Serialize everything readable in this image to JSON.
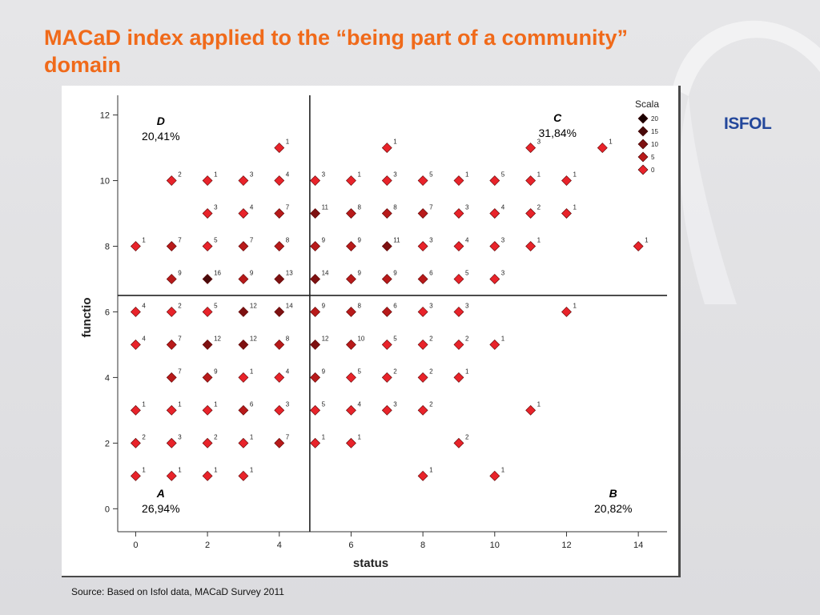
{
  "slide": {
    "title": "MACaD index applied to the “being part of a community” domain",
    "source": "Source: Based on  Isfol data, MACaD Survey 2011",
    "logo_text": "ISFOL",
    "title_color": "#f06a1a",
    "logo_color": "#23479b"
  },
  "chart_data": {
    "type": "scatter",
    "title": "",
    "xlabel": "status",
    "ylabel": "functio",
    "xlim": [
      -0.5,
      14.8
    ],
    "ylim": [
      -0.7,
      12.6
    ],
    "xticks": [
      0,
      2,
      4,
      6,
      8,
      10,
      12,
      14
    ],
    "yticks": [
      0,
      2,
      4,
      6,
      8,
      10,
      12
    ],
    "divider_x": 4.85,
    "divider_y": 6.5,
    "grid": false,
    "legend": {
      "title": "Scala",
      "placement": "top-right",
      "entries": [
        {
          "label": "20",
          "color": "#1a0000"
        },
        {
          "label": "15",
          "color": "#4a0a0a"
        },
        {
          "label": "10",
          "color": "#7e1111"
        },
        {
          "label": "5",
          "color": "#b81a1a"
        },
        {
          "label": "0",
          "color": "#e8232a"
        }
      ]
    },
    "quadrants": [
      {
        "letter": "D",
        "value": "20,41%",
        "position": "top-left"
      },
      {
        "letter": "C",
        "value": "31,84%",
        "position": "top-right"
      },
      {
        "letter": "A",
        "value": "26,94%",
        "position": "bottom-left"
      },
      {
        "letter": "B",
        "value": "20,82%",
        "position": "bottom-right"
      }
    ],
    "points": [
      {
        "x": 4,
        "y": 11,
        "n": 1
      },
      {
        "x": 7,
        "y": 11,
        "n": 1
      },
      {
        "x": 11,
        "y": 11,
        "n": 3
      },
      {
        "x": 13,
        "y": 11,
        "n": 1
      },
      {
        "x": 1,
        "y": 10,
        "n": 2
      },
      {
        "x": 2,
        "y": 10,
        "n": 1
      },
      {
        "x": 3,
        "y": 10,
        "n": 3
      },
      {
        "x": 4,
        "y": 10,
        "n": 4
      },
      {
        "x": 5,
        "y": 10,
        "n": 3
      },
      {
        "x": 6,
        "y": 10,
        "n": 1
      },
      {
        "x": 7,
        "y": 10,
        "n": 3
      },
      {
        "x": 8,
        "y": 10,
        "n": 5
      },
      {
        "x": 9,
        "y": 10,
        "n": 1
      },
      {
        "x": 10,
        "y": 10,
        "n": 5
      },
      {
        "x": 11,
        "y": 10,
        "n": 1
      },
      {
        "x": 12,
        "y": 10,
        "n": 1
      },
      {
        "x": 2,
        "y": 9,
        "n": 3
      },
      {
        "x": 3,
        "y": 9,
        "n": 4
      },
      {
        "x": 4,
        "y": 9,
        "n": 7
      },
      {
        "x": 5,
        "y": 9,
        "n": 11
      },
      {
        "x": 6,
        "y": 9,
        "n": 8
      },
      {
        "x": 7,
        "y": 9,
        "n": 8
      },
      {
        "x": 8,
        "y": 9,
        "n": 7
      },
      {
        "x": 9,
        "y": 9,
        "n": 3
      },
      {
        "x": 10,
        "y": 9,
        "n": 4
      },
      {
        "x": 11,
        "y": 9,
        "n": 2
      },
      {
        "x": 12,
        "y": 9,
        "n": 1
      },
      {
        "x": 0,
        "y": 8,
        "n": 1
      },
      {
        "x": 1,
        "y": 8,
        "n": 7
      },
      {
        "x": 2,
        "y": 8,
        "n": 5
      },
      {
        "x": 3,
        "y": 8,
        "n": 7
      },
      {
        "x": 4,
        "y": 8,
        "n": 8
      },
      {
        "x": 5,
        "y": 8,
        "n": 9
      },
      {
        "x": 6,
        "y": 8,
        "n": 9
      },
      {
        "x": 7,
        "y": 8,
        "n": 11
      },
      {
        "x": 8,
        "y": 8,
        "n": 3
      },
      {
        "x": 9,
        "y": 8,
        "n": 4
      },
      {
        "x": 10,
        "y": 8,
        "n": 3
      },
      {
        "x": 11,
        "y": 8,
        "n": 1
      },
      {
        "x": 14,
        "y": 8,
        "n": 1
      },
      {
        "x": 1,
        "y": 7,
        "n": 9
      },
      {
        "x": 2,
        "y": 7,
        "n": 16
      },
      {
        "x": 3,
        "y": 7,
        "n": 9
      },
      {
        "x": 4,
        "y": 7,
        "n": 13
      },
      {
        "x": 5,
        "y": 7,
        "n": 14
      },
      {
        "x": 6,
        "y": 7,
        "n": 9
      },
      {
        "x": 7,
        "y": 7,
        "n": 9
      },
      {
        "x": 8,
        "y": 7,
        "n": 6
      },
      {
        "x": 9,
        "y": 7,
        "n": 5
      },
      {
        "x": 10,
        "y": 7,
        "n": 3
      },
      {
        "x": 0,
        "y": 6,
        "n": 4
      },
      {
        "x": 1,
        "y": 6,
        "n": 2
      },
      {
        "x": 2,
        "y": 6,
        "n": 5
      },
      {
        "x": 3,
        "y": 6,
        "n": 12
      },
      {
        "x": 4,
        "y": 6,
        "n": 14
      },
      {
        "x": 5,
        "y": 6,
        "n": 9
      },
      {
        "x": 6,
        "y": 6,
        "n": 8
      },
      {
        "x": 7,
        "y": 6,
        "n": 6
      },
      {
        "x": 8,
        "y": 6,
        "n": 3
      },
      {
        "x": 9,
        "y": 6,
        "n": 3
      },
      {
        "x": 12,
        "y": 6,
        "n": 1
      },
      {
        "x": 0,
        "y": 5,
        "n": 4
      },
      {
        "x": 1,
        "y": 5,
        "n": 7
      },
      {
        "x": 2,
        "y": 5,
        "n": 12
      },
      {
        "x": 3,
        "y": 5,
        "n": 12
      },
      {
        "x": 4,
        "y": 5,
        "n": 8
      },
      {
        "x": 5,
        "y": 5,
        "n": 12
      },
      {
        "x": 6,
        "y": 5,
        "n": 10
      },
      {
        "x": 7,
        "y": 5,
        "n": 5
      },
      {
        "x": 8,
        "y": 5,
        "n": 2
      },
      {
        "x": 9,
        "y": 5,
        "n": 2
      },
      {
        "x": 10,
        "y": 5,
        "n": 1
      },
      {
        "x": 1,
        "y": 4,
        "n": 7
      },
      {
        "x": 2,
        "y": 4,
        "n": 9
      },
      {
        "x": 3,
        "y": 4,
        "n": 1
      },
      {
        "x": 4,
        "y": 4,
        "n": 4
      },
      {
        "x": 5,
        "y": 4,
        "n": 9
      },
      {
        "x": 6,
        "y": 4,
        "n": 5
      },
      {
        "x": 7,
        "y": 4,
        "n": 2
      },
      {
        "x": 8,
        "y": 4,
        "n": 2
      },
      {
        "x": 9,
        "y": 4,
        "n": 1
      },
      {
        "x": 0,
        "y": 3,
        "n": 1
      },
      {
        "x": 1,
        "y": 3,
        "n": 1
      },
      {
        "x": 2,
        "y": 3,
        "n": 1
      },
      {
        "x": 3,
        "y": 3,
        "n": 6
      },
      {
        "x": 4,
        "y": 3,
        "n": 3
      },
      {
        "x": 5,
        "y": 3,
        "n": 5
      },
      {
        "x": 6,
        "y": 3,
        "n": 4
      },
      {
        "x": 7,
        "y": 3,
        "n": 3
      },
      {
        "x": 8,
        "y": 3,
        "n": 2
      },
      {
        "x": 11,
        "y": 3,
        "n": 1
      },
      {
        "x": 0,
        "y": 2,
        "n": 2
      },
      {
        "x": 1,
        "y": 2,
        "n": 3
      },
      {
        "x": 2,
        "y": 2,
        "n": 2
      },
      {
        "x": 3,
        "y": 2,
        "n": 1
      },
      {
        "x": 4,
        "y": 2,
        "n": 7
      },
      {
        "x": 5,
        "y": 2,
        "n": 1
      },
      {
        "x": 6,
        "y": 2,
        "n": 1
      },
      {
        "x": 9,
        "y": 2,
        "n": 2
      },
      {
        "x": 0,
        "y": 1,
        "n": 1
      },
      {
        "x": 1,
        "y": 1,
        "n": 1
      },
      {
        "x": 2,
        "y": 1,
        "n": 1
      },
      {
        "x": 3,
        "y": 1,
        "n": 1
      },
      {
        "x": 8,
        "y": 1,
        "n": 1
      },
      {
        "x": 10,
        "y": 1,
        "n": 1
      }
    ]
  }
}
